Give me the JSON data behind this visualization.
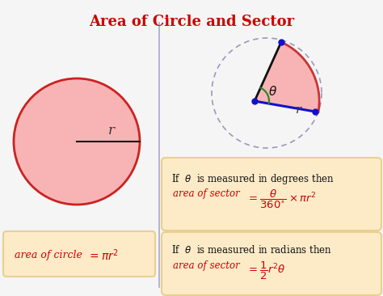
{
  "title": "Area of Circle and Sector",
  "title_color": "#cc0000",
  "title_fontsize": 13,
  "bg_color": "#f5f5f5",
  "divider_color": "#aaaacc",
  "circle_fill": "#f8b4b4",
  "circle_edge": "#cc2222",
  "sector_fill": "#f8b4b4",
  "sector_arc_color": "#cc3333",
  "dashed_circle_color": "#9999bb",
  "radius_line_color": "#111111",
  "blue_line_color": "#1111cc",
  "blue_dot_color": "#1111cc",
  "formula_box_color": "#fdebc8",
  "formula_box_edge": "#e8d090",
  "text_black": "#111111",
  "text_red": "#cc0000",
  "green_angle_color": "#228822"
}
